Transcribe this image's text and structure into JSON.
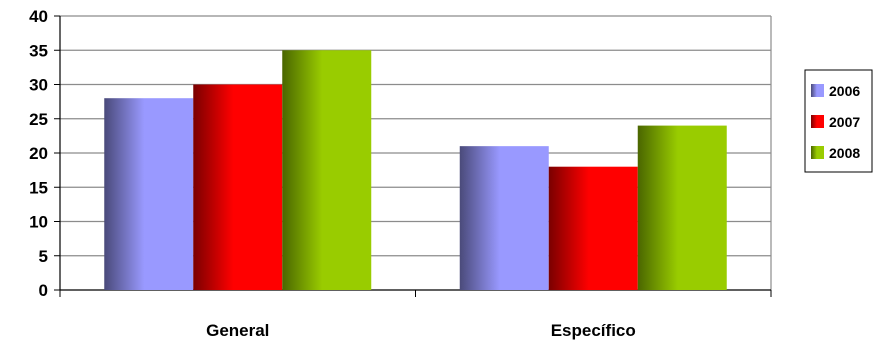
{
  "chart_data": {
    "type": "bar",
    "categories": [
      "General",
      "Específico"
    ],
    "series": [
      {
        "name": "2006",
        "values": [
          28,
          21
        ],
        "color": "#9999ff",
        "shade": "#4a4a7a"
      },
      {
        "name": "2007",
        "values": [
          30,
          18
        ],
        "color": "#ff0000",
        "shade": "#7a0000"
      },
      {
        "name": "2008",
        "values": [
          35,
          24
        ],
        "color": "#99cc00",
        "shade": "#4a6600"
      }
    ],
    "title": "",
    "xlabel": "",
    "ylabel": "",
    "ylim": [
      0,
      40
    ],
    "yticks": [
      "0",
      "5",
      "10",
      "15",
      "20",
      "25",
      "30",
      "35",
      "40"
    ],
    "grid": true,
    "legend_position": "right"
  }
}
